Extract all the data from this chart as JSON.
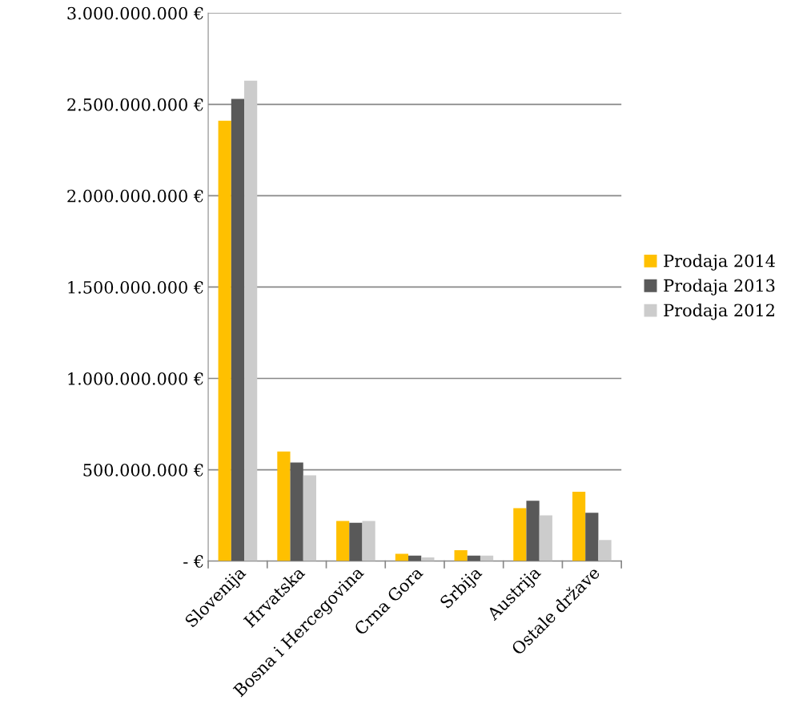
{
  "chart_data": {
    "type": "bar",
    "categories": [
      "Slovenija",
      "Hrvatska",
      "Bosna i Hercegovina",
      "Crna Gora",
      "Srbija",
      "Austrija",
      "Ostale države"
    ],
    "series": [
      {
        "name": "Prodaja 2014",
        "color": "#ffc000",
        "values": [
          2410000000,
          600000000,
          220000000,
          40000000,
          60000000,
          290000000,
          380000000
        ]
      },
      {
        "name": "Prodaja 2013",
        "color": "#595959",
        "values": [
          2530000000,
          540000000,
          210000000,
          30000000,
          30000000,
          330000000,
          265000000
        ]
      },
      {
        "name": "Prodaja 2012",
        "color": "#cccccc",
        "values": [
          2630000000,
          470000000,
          220000000,
          20000000,
          30000000,
          250000000,
          115000000
        ]
      }
    ],
    "ylim": [
      0,
      3000000000
    ],
    "yticks": [
      {
        "value": 0,
        "label": "- €"
      },
      {
        "value": 500000000,
        "label": "500.000.000 €"
      },
      {
        "value": 1000000000,
        "label": "1.000.000.000 €"
      },
      {
        "value": 1500000000,
        "label": "1.500.000.000 €"
      },
      {
        "value": 2000000000,
        "label": "2.000.000.000 €"
      },
      {
        "value": 2500000000,
        "label": "2.500.000.000 €"
      },
      {
        "value": 3000000000,
        "label": "3.000.000.000 €"
      }
    ],
    "grid": "y",
    "legend": "right"
  }
}
